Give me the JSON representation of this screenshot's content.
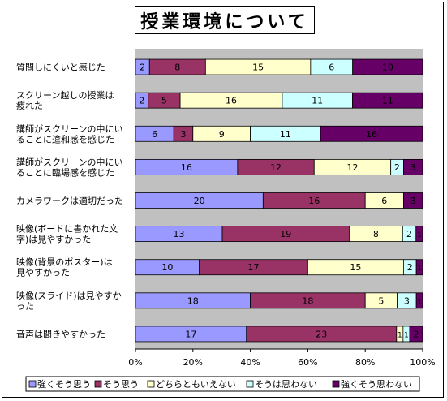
{
  "chart_data": {
    "type": "bar",
    "title": "授業環境について",
    "stacked": true,
    "percent": true,
    "orientation": "horizontal",
    "categories": [
      [
        "質問しにくいと感じた"
      ],
      [
        "スクリーン越しの授業は",
        "疲れた"
      ],
      [
        "講師がスクリーンの中にい",
        "ることに違和感を感じた"
      ],
      [
        "講師がスクリーンの中にい",
        "ることに臨場感を感じた"
      ],
      [
        "カメラワークは適切だった"
      ],
      [
        "映像(ボードに書かれた文",
        "字)は見やすかった"
      ],
      [
        "映像(背景のポスター)は",
        "見やすかった"
      ],
      [
        "映像(スライド)は見やすか",
        "った"
      ],
      [
        "音声は聞きやすかった"
      ]
    ],
    "series": [
      {
        "name": "強くそう思う",
        "color": "#9999ff",
        "values": [
          2,
          2,
          6,
          16,
          20,
          13,
          10,
          18,
          17
        ]
      },
      {
        "name": "そう思う",
        "color": "#993366",
        "values": [
          8,
          5,
          3,
          12,
          16,
          19,
          17,
          18,
          23
        ]
      },
      {
        "name": "どちらともいえない",
        "color": "#ffffcc",
        "values": [
          15,
          16,
          9,
          12,
          6,
          8,
          15,
          5,
          1
        ]
      },
      {
        "name": "そうは思わない",
        "color": "#ccffff",
        "values": [
          6,
          11,
          11,
          2,
          0,
          2,
          2,
          3,
          1
        ]
      },
      {
        "name": "強くそう思わない",
        "color": "#660066",
        "values": [
          10,
          11,
          16,
          3,
          3,
          1,
          1,
          1,
          2
        ]
      }
    ],
    "xticks": [
      "0%",
      "20%",
      "40%",
      "60%",
      "80%",
      "100%"
    ],
    "xlim": [
      0,
      100
    ],
    "grid": false,
    "legend": "bottom",
    "plot_background": "#c0c0c0"
  }
}
